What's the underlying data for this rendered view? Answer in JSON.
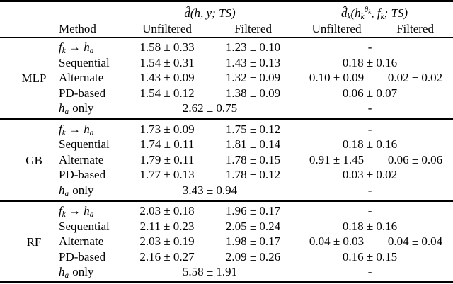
{
  "table": {
    "col_group_1_math": "d̂(h, y; TS)",
    "col_group_2_math": "d̂_{k}(h_{k}^{θ_k}, f_{k}; TS)",
    "headers": {
      "method": "Method",
      "g1_unfiltered": "Unfiltered",
      "g1_filtered": "Filtered",
      "g2_unfiltered": "Unfiltered",
      "g2_filtered": "Filtered"
    },
    "sections": [
      {
        "model": "MLP",
        "rows": [
          {
            "method_math": "f_{k} → h_{a}",
            "d_unfiltered": "1.58 ± 0.33",
            "d_filtered": "1.23 ± 0.10",
            "dk_merged": "-"
          },
          {
            "method": "Sequential",
            "d_unfiltered": "1.54 ± 0.31",
            "d_filtered": "1.43 ± 0.13",
            "dk_merged": "0.18 ± 0.16"
          },
          {
            "method": "Alternate",
            "d_unfiltered": "1.43 ± 0.09",
            "d_filtered": "1.32 ± 0.09",
            "dk_unfiltered": "0.10 ± 0.09",
            "dk_filtered": "0.02 ± 0.02"
          },
          {
            "method": "PD-based",
            "d_unfiltered": "1.54 ± 0.12",
            "d_filtered": "1.38 ± 0.09",
            "dk_merged": "0.06 ± 0.07"
          },
          {
            "method_math": "h_{a}",
            "method_suffix": "only",
            "d_merged": "2.62 ± 0.75",
            "dk_merged": "-"
          }
        ]
      },
      {
        "model": "GB",
        "rows": [
          {
            "method_math": "f_{k} → h_{a}",
            "d_unfiltered": "1.73 ± 0.09",
            "d_filtered": "1.75 ± 0.12",
            "dk_merged": "-"
          },
          {
            "method": "Sequential",
            "d_unfiltered": "1.74 ± 0.11",
            "d_filtered": "1.81 ± 0.14",
            "dk_merged": "0.18 ± 0.16"
          },
          {
            "method": "Alternate",
            "d_unfiltered": "1.79 ± 0.11",
            "d_filtered": "1.78 ± 0.15",
            "dk_unfiltered": "0.91 ± 1.45",
            "dk_filtered": "0.06 ± 0.06"
          },
          {
            "method": "PD-based",
            "d_unfiltered": "1.77 ± 0.13",
            "d_filtered": "1.78 ± 0.12",
            "dk_merged": "0.03 ± 0.02"
          },
          {
            "method_math": "h_{a}",
            "method_suffix": "only",
            "d_merged": "3.43 ± 0.94",
            "dk_merged": "-"
          }
        ]
      },
      {
        "model": "RF",
        "rows": [
          {
            "method_math": "f_{k} → h_{a}",
            "d_unfiltered": "2.03 ± 0.18",
            "d_filtered": "1.96 ± 0.17",
            "dk_merged": "-"
          },
          {
            "method": "Sequential",
            "d_unfiltered": "2.11 ± 0.23",
            "d_filtered": "2.05 ± 0.24",
            "dk_merged": "0.18 ± 0.16"
          },
          {
            "method": "Alternate",
            "d_unfiltered": "2.03 ± 0.19",
            "d_filtered": "1.98 ± 0.17",
            "dk_unfiltered": "0.04 ± 0.03",
            "dk_filtered": "0.04 ± 0.04"
          },
          {
            "method": "PD-based",
            "d_unfiltered": "2.16 ± 0.27",
            "d_filtered": "2.09 ± 0.26",
            "dk_merged": "0.16 ± 0.15"
          },
          {
            "method_math": "h_{a}",
            "method_suffix": "only",
            "d_merged": "5.58 ± 1.91",
            "dk_merged": "-"
          }
        ]
      }
    ]
  }
}
